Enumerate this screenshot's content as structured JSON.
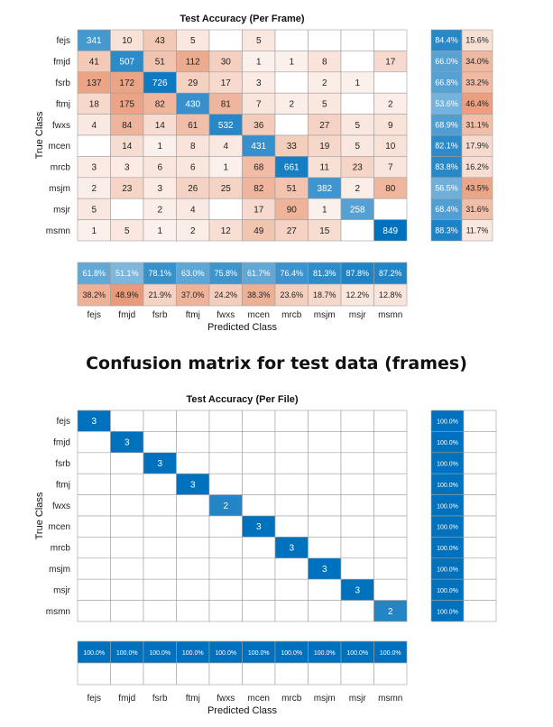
{
  "caption": "Confusion matrix for test data (frames)",
  "colors": {
    "blue": "#0072bd",
    "red": "#d95319",
    "gridline": "#a0a0a0",
    "text": "#222222"
  },
  "chart_data": [
    {
      "type": "heatmap",
      "title": "Test Accuracy (Per Frame)",
      "xlabel": "Predicted Class",
      "ylabel": "True Class",
      "classes": [
        "fejs",
        "fmjd",
        "fsrb",
        "ftmj",
        "fwxs",
        "mcen",
        "mrcb",
        "msjm",
        "msjr",
        "msmn"
      ],
      "matrix": [
        [
          341,
          10,
          43,
          5,
          null,
          5,
          null,
          null,
          null,
          null
        ],
        [
          41,
          507,
          51,
          112,
          30,
          1,
          1,
          8,
          null,
          17
        ],
        [
          137,
          172,
          726,
          29,
          17,
          3,
          null,
          2,
          1,
          null
        ],
        [
          18,
          175,
          82,
          430,
          81,
          7,
          2,
          5,
          null,
          2
        ],
        [
          4,
          84,
          14,
          61,
          532,
          36,
          null,
          27,
          5,
          9
        ],
        [
          null,
          14,
          1,
          8,
          4,
          431,
          33,
          19,
          5,
          10
        ],
        [
          3,
          3,
          6,
          6,
          1,
          68,
          661,
          11,
          23,
          7
        ],
        [
          2,
          23,
          3,
          26,
          25,
          82,
          51,
          382,
          2,
          80
        ],
        [
          5,
          null,
          2,
          4,
          null,
          17,
          90,
          1,
          258,
          null
        ],
        [
          1,
          5,
          1,
          2,
          12,
          49,
          27,
          15,
          null,
          849
        ]
      ],
      "row_summary": [
        [
          "84.4%",
          "15.6%"
        ],
        [
          "66.0%",
          "34.0%"
        ],
        [
          "66.8%",
          "33.2%"
        ],
        [
          "53.6%",
          "46.4%"
        ],
        [
          "68.9%",
          "31.1%"
        ],
        [
          "82.1%",
          "17.9%"
        ],
        [
          "83.8%",
          "16.2%"
        ],
        [
          "56.5%",
          "43.5%"
        ],
        [
          "68.4%",
          "31.6%"
        ],
        [
          "88.3%",
          "11.7%"
        ]
      ],
      "column_summary": [
        [
          "61.8%",
          "51.1%",
          "78.1%",
          "63.0%",
          "75.8%",
          "61.7%",
          "76.4%",
          "81.3%",
          "87.8%",
          "87.2%"
        ],
        [
          "38.2%",
          "48.9%",
          "21.9%",
          "37.0%",
          "24.2%",
          "38.3%",
          "23.6%",
          "18.7%",
          "12.2%",
          "12.8%"
        ]
      ]
    },
    {
      "type": "heatmap",
      "title": "Test Accuracy (Per File)",
      "xlabel": "Predicted Class",
      "ylabel": "True Class",
      "classes": [
        "fejs",
        "fmjd",
        "fsrb",
        "ftmj",
        "fwxs",
        "mcen",
        "mrcb",
        "msjm",
        "msjr",
        "msmn"
      ],
      "matrix": [
        [
          3,
          null,
          null,
          null,
          null,
          null,
          null,
          null,
          null,
          null
        ],
        [
          null,
          3,
          null,
          null,
          null,
          null,
          null,
          null,
          null,
          null
        ],
        [
          null,
          null,
          3,
          null,
          null,
          null,
          null,
          null,
          null,
          null
        ],
        [
          null,
          null,
          null,
          3,
          null,
          null,
          null,
          null,
          null,
          null
        ],
        [
          null,
          null,
          null,
          null,
          2,
          null,
          null,
          null,
          null,
          null
        ],
        [
          null,
          null,
          null,
          null,
          null,
          3,
          null,
          null,
          null,
          null
        ],
        [
          null,
          null,
          null,
          null,
          null,
          null,
          3,
          null,
          null,
          null
        ],
        [
          null,
          null,
          null,
          null,
          null,
          null,
          null,
          3,
          null,
          null
        ],
        [
          null,
          null,
          null,
          null,
          null,
          null,
          null,
          null,
          3,
          null
        ],
        [
          null,
          null,
          null,
          null,
          null,
          null,
          null,
          null,
          null,
          2
        ]
      ],
      "row_summary": [
        [
          "100.0%",
          ""
        ],
        [
          "100.0%",
          ""
        ],
        [
          "100.0%",
          ""
        ],
        [
          "100.0%",
          ""
        ],
        [
          "100.0%",
          ""
        ],
        [
          "100.0%",
          ""
        ],
        [
          "100.0%",
          ""
        ],
        [
          "100.0%",
          ""
        ],
        [
          "100.0%",
          ""
        ],
        [
          "100.0%",
          ""
        ]
      ],
      "column_summary": [
        [
          "100.0%",
          "100.0%",
          "100.0%",
          "100.0%",
          "100.0%",
          "100.0%",
          "100.0%",
          "100.0%",
          "100.0%",
          "100.0%"
        ],
        [
          "",
          "",
          "",
          "",
          "",
          "",
          "",
          "",
          "",
          ""
        ]
      ]
    }
  ]
}
